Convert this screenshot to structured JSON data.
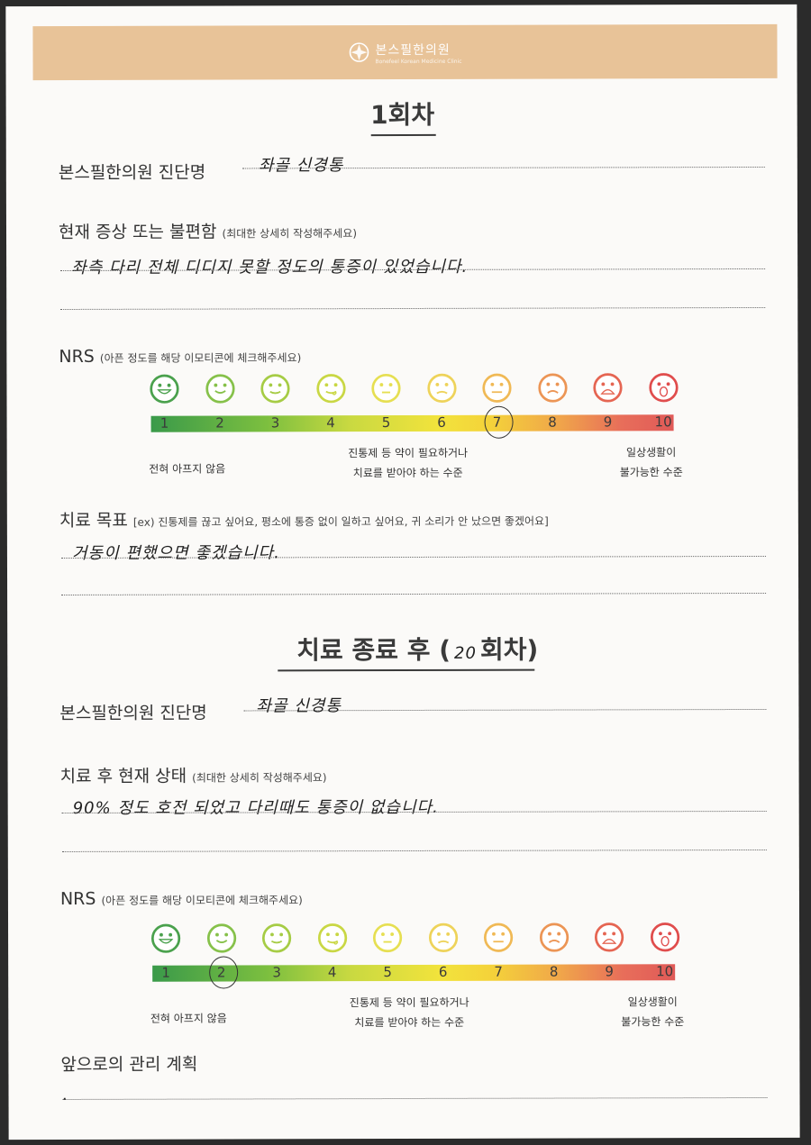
{
  "header": {
    "clinic": "본스필한의원",
    "subtitle": "Bonefeel Korean Medicine Clinic"
  },
  "section1": {
    "title": "1회차",
    "diagnosis_label": "본스필한의원 진단명",
    "diagnosis_value": "좌골 신경통",
    "symptom_label": "현재 증상 또는 불편함",
    "symptom_hint": "(최대한 상세히 작성해주세요)",
    "symptom_value": "좌측 다리 전체 디디지 못할 정도의 통증이 있었습니다.",
    "nrs_label": "NRS",
    "nrs_hint": "(아픈 정도를 해당 이모티콘에 체크해주세요)",
    "nrs_selected": 7,
    "goal_label": "치료 목표",
    "goal_hint": "[ex) 진통제를 끊고 싶어요, 평소에 통증 없이 일하고 싶어요, 귀 소리가 안 났으면 좋겠어요]",
    "goal_value": "거동이 편했으면 좋겠습니다."
  },
  "section2": {
    "title_prefix": "치료 종료 후 (",
    "title_count": "20",
    "title_suffix": "회차)",
    "diagnosis_label": "본스필한의원 진단명",
    "diagnosis_value": "좌골 신경통",
    "status_label": "치료 후 현재 상태",
    "status_hint": "(최대한 상세히 작성해주세요)",
    "status_value": "90% 정도 호전 되었고 다리때도 통증이 없습니다.",
    "nrs_label": "NRS",
    "nrs_hint": "(아픈 정도를 해당 이모티콘에 체크해주세요)",
    "nrs_selected": 2,
    "plan_label": "앞으로의 관리 계획",
    "plan_value": "."
  },
  "scale": {
    "numbers": [
      "1",
      "2",
      "3",
      "4",
      "5",
      "6",
      "7",
      "8",
      "9",
      "10"
    ],
    "caption_low": "전혀 아프지 않음",
    "caption_mid_1": "진통제 등 약이 필요하거나",
    "caption_mid_2": "치료를 받아야 하는 수준",
    "caption_high_1": "일상생활이",
    "caption_high_2": "불가능한 수준",
    "face_colors": [
      "#4aa14d",
      "#86c14a",
      "#a6cc45",
      "#c9d744",
      "#e6df52",
      "#eed35a",
      "#f0b955",
      "#ec9555",
      "#e56552",
      "#e04d4d"
    ],
    "face_icons": [
      "grin-face-icon",
      "smile-face-icon",
      "slight-smile-face-icon",
      "tongue-face-icon",
      "neutral-face-icon",
      "sad-face-icon",
      "flat-face-icon",
      "worried-face-icon",
      "frown-face-icon",
      "crying-face-icon"
    ]
  }
}
